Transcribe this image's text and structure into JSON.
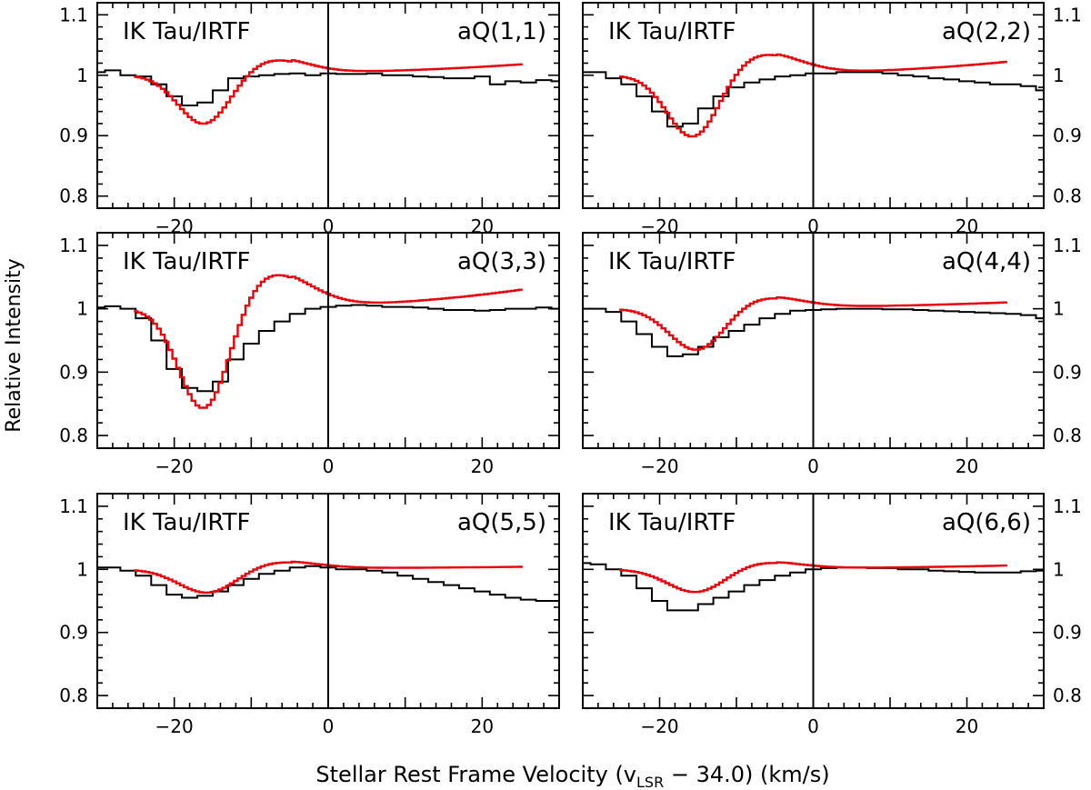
{
  "chart_data": {
    "type": "line",
    "xlabel_main": "Stellar Rest Frame Velocity (v",
    "xlabel_sub": "LSR",
    "xlabel_tail": " − 34.0) (km/s)",
    "ylabel": "Relative Intensity",
    "xlim": [
      -30,
      30
    ],
    "ylim": [
      0.78,
      1.12
    ],
    "xticks": [
      -20,
      0,
      20
    ],
    "xtick_labels": [
      "−20",
      "0",
      "20"
    ],
    "yticks": [
      0.8,
      0.9,
      1.0,
      1.1
    ],
    "ytick_labels": [
      "0.8",
      "0.9",
      "1",
      "1.1"
    ],
    "series_colors": {
      "observed": "#000000",
      "model": "#e8000b"
    },
    "panels": [
      {
        "source_label": "IK Tau/IRTF",
        "line_label": "aQ(1,1)",
        "observed": {
          "x": [
            -30,
            -28,
            -26,
            -24,
            -22,
            -20,
            -18,
            -16,
            -14,
            -12,
            -10,
            -8,
            -6,
            -4,
            -2,
            0,
            2,
            4,
            6,
            8,
            10,
            12,
            14,
            16,
            18,
            20,
            22,
            24,
            26,
            28,
            30
          ],
          "y": [
            1.005,
            1.008,
            1.0,
            0.998,
            0.985,
            0.965,
            0.95,
            0.955,
            0.975,
            0.995,
            0.998,
            1.0,
            1.002,
            1.003,
            1.0,
            1.003,
            1.002,
            1.002,
            1.003,
            1.0,
            1.0,
            0.998,
            0.997,
            0.995,
            0.995,
            0.998,
            0.985,
            0.99,
            0.988,
            0.992,
            0.99
          ]
        },
        "model": {
          "x0": -25,
          "x1": 25,
          "base": 1.0,
          "depth": 0.085,
          "center": -16,
          "width": 3.4,
          "bump_amp": 0.025,
          "bump_center": -7.5,
          "bump_width": 4.5,
          "tail": [
            1.005,
            1.018
          ]
        }
      },
      {
        "source_label": "IK Tau/IRTF",
        "line_label": "aQ(2,2)",
        "observed": {
          "x": [
            -30,
            -28,
            -26,
            -24,
            -22,
            -20,
            -18,
            -16,
            -14,
            -12,
            -10,
            -8,
            -6,
            -4,
            -2,
            0,
            2,
            4,
            6,
            8,
            10,
            12,
            14,
            16,
            18,
            20,
            22,
            24,
            26,
            28,
            30
          ],
          "y": [
            1.005,
            1.005,
            0.995,
            0.985,
            0.965,
            0.94,
            0.915,
            0.92,
            0.945,
            0.965,
            0.98,
            0.988,
            0.993,
            0.998,
            1.0,
            1.003,
            1.003,
            1.005,
            1.005,
            1.005,
            1.003,
            1.0,
            0.998,
            0.995,
            0.993,
            0.99,
            0.988,
            0.985,
            0.985,
            0.982,
            0.975
          ]
        },
        "model": {
          "x0": -25,
          "x1": 25,
          "base": 1.0,
          "depth": 0.11,
          "center": -15.5,
          "width": 3.4,
          "bump_amp": 0.035,
          "bump_center": -7,
          "bump_width": 5,
          "tail": [
            1.004,
            1.022
          ]
        }
      },
      {
        "source_label": "IK Tau/IRTF",
        "line_label": "aQ(3,3)",
        "observed": {
          "x": [
            -30,
            -28,
            -26,
            -24,
            -22,
            -20,
            -18,
            -16,
            -14,
            -12,
            -10,
            -8,
            -6,
            -4,
            -2,
            0,
            2,
            4,
            6,
            8,
            10,
            12,
            14,
            16,
            18,
            20,
            22,
            24,
            26,
            28,
            30
          ],
          "y": [
            1.002,
            1.004,
            1.0,
            0.985,
            0.95,
            0.905,
            0.875,
            0.87,
            0.885,
            0.92,
            0.945,
            0.965,
            0.98,
            0.992,
            1.0,
            1.003,
            1.005,
            1.006,
            1.005,
            1.003,
            1.003,
            1.002,
            1.0,
            0.998,
            0.998,
            0.997,
            0.998,
            1.0,
            1.0,
            1.002,
            1.0
          ]
        },
        "model": {
          "x0": -25,
          "x1": 25,
          "base": 1.0,
          "depth": 0.17,
          "center": -16,
          "width": 3.3,
          "bump_amp": 0.055,
          "bump_center": -7.5,
          "bump_width": 5,
          "tail": [
            1.005,
            1.03
          ]
        }
      },
      {
        "source_label": "IK Tau/IRTF",
        "line_label": "aQ(4,4)",
        "observed": {
          "x": [
            -30,
            -28,
            -26,
            -24,
            -22,
            -20,
            -18,
            -16,
            -14,
            -12,
            -10,
            -8,
            -6,
            -4,
            -2,
            0,
            2,
            4,
            6,
            8,
            10,
            12,
            14,
            16,
            18,
            20,
            22,
            24,
            26,
            28,
            30
          ],
          "y": [
            1.0,
            1.0,
            0.995,
            0.98,
            0.96,
            0.94,
            0.925,
            0.928,
            0.94,
            0.955,
            0.965,
            0.975,
            0.985,
            0.992,
            0.997,
            0.998,
            0.999,
            1.0,
            1.0,
            1.0,
            0.999,
            0.999,
            0.998,
            0.997,
            0.996,
            0.995,
            0.994,
            0.993,
            0.992,
            0.99,
            0.985
          ]
        },
        "model": {
          "x0": -25,
          "x1": 25,
          "base": 1.0,
          "depth": 0.07,
          "center": -15,
          "width": 3.6,
          "bump_amp": 0.018,
          "bump_center": -7,
          "bump_width": 5,
          "tail": [
            1.003,
            1.01
          ]
        }
      },
      {
        "source_label": "IK Tau/IRTF",
        "line_label": "aQ(5,5)",
        "observed": {
          "x": [
            -30,
            -28,
            -26,
            -24,
            -22,
            -20,
            -18,
            -16,
            -14,
            -12,
            -10,
            -8,
            -6,
            -4,
            -2,
            0,
            2,
            4,
            6,
            8,
            10,
            12,
            14,
            16,
            18,
            20,
            22,
            24,
            26,
            28,
            30
          ],
          "y": [
            1.003,
            1.003,
            0.998,
            0.99,
            0.975,
            0.96,
            0.955,
            0.958,
            0.965,
            0.975,
            0.985,
            0.993,
            0.998,
            1.003,
            1.005,
            1.003,
            1.0,
            1.0,
            0.998,
            0.995,
            0.99,
            0.985,
            0.98,
            0.975,
            0.97,
            0.965,
            0.96,
            0.955,
            0.952,
            0.95,
            0.95
          ]
        },
        "model": {
          "x0": -25,
          "x1": 25,
          "base": 1.0,
          "depth": 0.04,
          "center": -15.5,
          "width": 3.8,
          "bump_amp": 0.012,
          "bump_center": -7,
          "bump_width": 5,
          "tail": [
            1.002,
            1.004
          ]
        }
      },
      {
        "source_label": "IK Tau/IRTF",
        "line_label": "aQ(6,6)",
        "observed": {
          "x": [
            -30,
            -28,
            -26,
            -24,
            -22,
            -20,
            -18,
            -16,
            -14,
            -12,
            -10,
            -8,
            -6,
            -4,
            -2,
            0,
            2,
            4,
            6,
            8,
            10,
            12,
            14,
            16,
            18,
            20,
            22,
            24,
            26,
            28,
            30
          ],
          "y": [
            1.01,
            1.008,
            1.0,
            0.99,
            0.97,
            0.95,
            0.935,
            0.935,
            0.945,
            0.955,
            0.965,
            0.975,
            0.983,
            0.99,
            0.995,
            1.0,
            1.002,
            1.003,
            1.003,
            1.002,
            1.002,
            1.0,
            1.0,
            0.998,
            0.997,
            0.996,
            0.995,
            0.995,
            0.995,
            0.997,
            0.998
          ]
        },
        "model": {
          "x0": -25,
          "x1": 25,
          "base": 1.0,
          "depth": 0.04,
          "center": -15,
          "width": 3.8,
          "bump_amp": 0.012,
          "bump_center": -7.5,
          "bump_width": 5,
          "tail": [
            1.002,
            1.006
          ]
        }
      }
    ]
  }
}
